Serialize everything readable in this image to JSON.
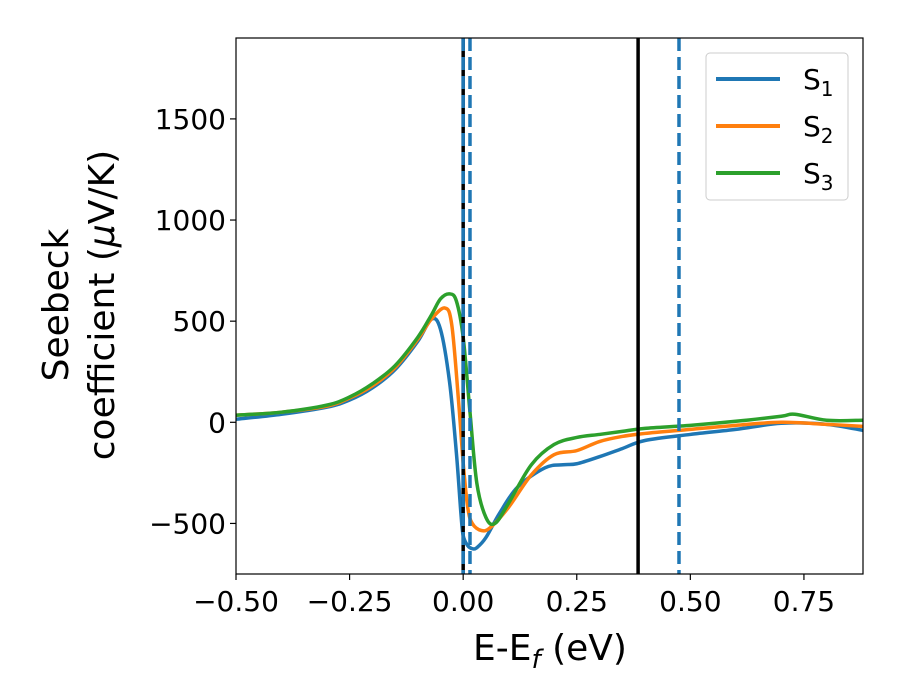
{
  "chart_data": {
    "type": "line",
    "xlabel": {
      "main": "E-E",
      "sub": "f",
      "tail": " (eV)"
    },
    "ylabel": {
      "line1": "Seebeck",
      "line2_pre": "coefficient  (",
      "mu": "μ",
      "line2_post": "V/K)"
    },
    "xlim": [
      -0.5,
      0.88
    ],
    "ylim": [
      -750,
      1900
    ],
    "xticks": [
      -0.5,
      -0.25,
      0.0,
      0.25,
      0.5,
      0.75
    ],
    "xtick_labels": [
      "−0.50",
      "−0.25",
      "0.00",
      "0.25",
      "0.50",
      "0.75"
    ],
    "yticks": [
      -500,
      0,
      500,
      1000,
      1500
    ],
    "ytick_labels": [
      "−500",
      "0",
      "500",
      "1000",
      "1500"
    ],
    "grid": false,
    "legend_position": "top-right",
    "series": [
      {
        "name": "S",
        "sub": "1",
        "color": "#1f77b4",
        "x": [
          -0.5,
          -0.4,
          -0.3,
          -0.25,
          -0.2,
          -0.15,
          -0.1,
          -0.07,
          -0.05,
          -0.03,
          -0.015,
          -0.005,
          0.0,
          0.01,
          0.02,
          0.03,
          0.05,
          0.08,
          0.12,
          0.18,
          0.22,
          0.25,
          0.3,
          0.35,
          0.4,
          0.5,
          0.6,
          0.7,
          0.8,
          0.88
        ],
        "y": [
          15,
          40,
          75,
          110,
          170,
          260,
          400,
          510,
          460,
          200,
          -150,
          -450,
          -560,
          -610,
          -625,
          -620,
          -570,
          -450,
          -320,
          -225,
          -210,
          -205,
          -170,
          -130,
          -90,
          -60,
          -35,
          -5,
          -10,
          -40
        ]
      },
      {
        "name": "S",
        "sub": "2",
        "color": "#ff7f0e",
        "x": [
          -0.5,
          -0.4,
          -0.3,
          -0.25,
          -0.2,
          -0.15,
          -0.1,
          -0.07,
          -0.04,
          -0.025,
          -0.01,
          0.0,
          0.01,
          0.02,
          0.04,
          0.06,
          0.1,
          0.15,
          0.2,
          0.25,
          0.3,
          0.35,
          0.4,
          0.5,
          0.6,
          0.7,
          0.8,
          0.88
        ],
        "y": [
          35,
          50,
          80,
          120,
          180,
          270,
          410,
          510,
          565,
          480,
          100,
          -200,
          -420,
          -500,
          -535,
          -520,
          -420,
          -260,
          -160,
          -140,
          -95,
          -70,
          -55,
          -35,
          -15,
          0,
          -10,
          -20
        ]
      },
      {
        "name": "S",
        "sub": "3",
        "color": "#2ca02c",
        "x": [
          -0.5,
          -0.4,
          -0.3,
          -0.25,
          -0.2,
          -0.15,
          -0.1,
          -0.07,
          -0.05,
          -0.03,
          -0.015,
          0.0,
          0.015,
          0.03,
          0.05,
          0.07,
          0.1,
          0.15,
          0.2,
          0.25,
          0.3,
          0.35,
          0.4,
          0.5,
          0.6,
          0.7,
          0.73,
          0.8,
          0.88
        ],
        "y": [
          35,
          50,
          85,
          125,
          190,
          280,
          420,
          530,
          610,
          635,
          600,
          420,
          50,
          -300,
          -470,
          -500,
          -400,
          -210,
          -110,
          -75,
          -60,
          -45,
          -30,
          -15,
          5,
          30,
          40,
          10,
          10
        ]
      }
    ],
    "vlines": [
      {
        "x": 0.0,
        "color": "#000000",
        "style": "solid"
      },
      {
        "x": 0.0,
        "color": "#1f77b4",
        "style": "dashed"
      },
      {
        "x": 0.015,
        "color": "#1f77b4",
        "style": "dashed"
      },
      {
        "x": 0.385,
        "color": "#000000",
        "style": "solid"
      },
      {
        "x": 0.475,
        "color": "#1f77b4",
        "style": "dashed"
      }
    ]
  }
}
